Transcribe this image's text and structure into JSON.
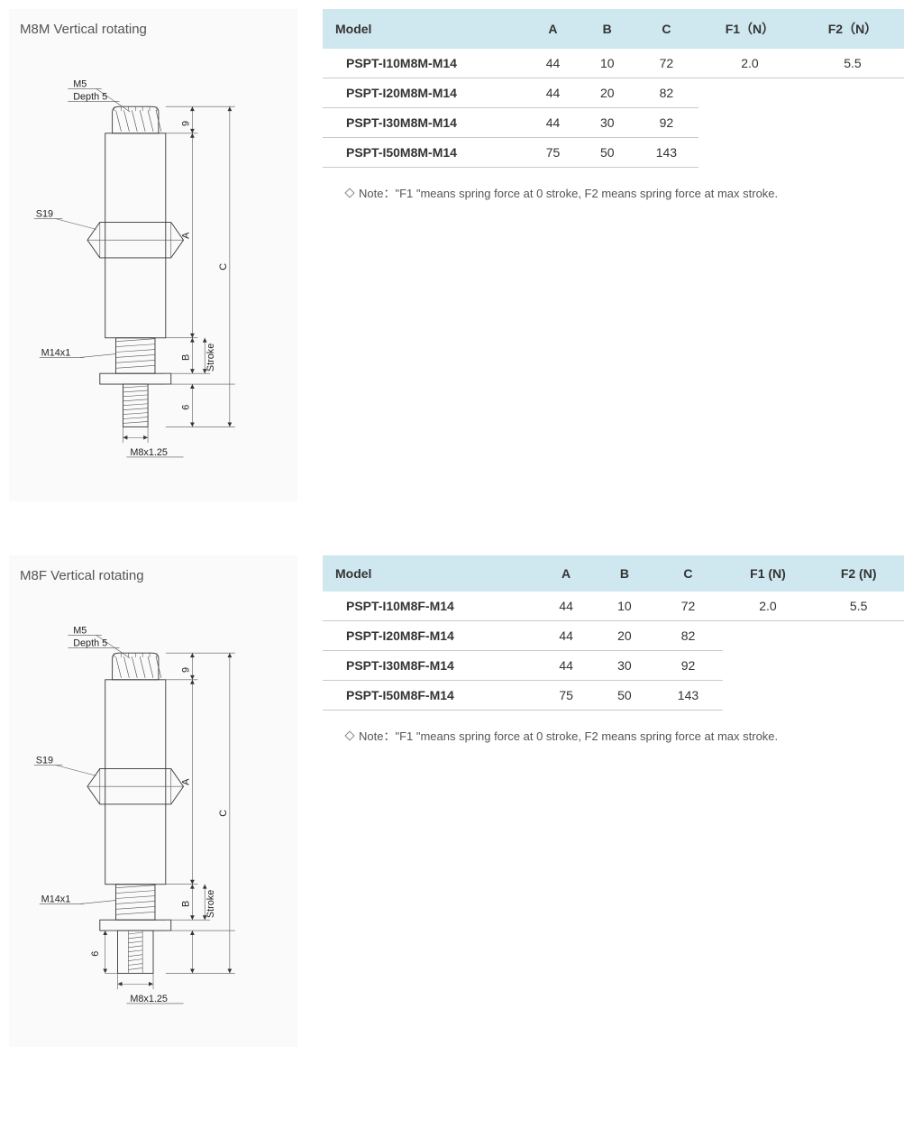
{
  "sections": [
    {
      "title": "M8M Vertical rotating",
      "diagram": {
        "top_thread_label": "M5",
        "top_depth_label": "Depth 5",
        "hex_label": "S19",
        "mid_thread_label": "M14x1",
        "bottom_thread_label": "M8x1.25",
        "dim_top_small": "9",
        "dim_bottom_small": "6",
        "dim_A": "A",
        "dim_B": "B",
        "dim_C": "C",
        "dim_stroke": "Stroke",
        "variant": "M"
      },
      "table": {
        "headers": [
          "Model",
          "A",
          "B",
          "C",
          "F1（N）",
          "F2（N）"
        ],
        "rows": [
          {
            "model": "PSPT-I10M8M-M14",
            "A": "44",
            "B": "10",
            "C": "72",
            "F1": "2.0",
            "F2": "5.5"
          },
          {
            "model": "PSPT-I20M8M-M14",
            "A": "44",
            "B": "20",
            "C": "82",
            "F1": "",
            "F2": ""
          },
          {
            "model": "PSPT-I30M8M-M14",
            "A": "44",
            "B": "30",
            "C": "92",
            "F1": "",
            "F2": ""
          },
          {
            "model": "PSPT-I50M8M-M14",
            "A": "75",
            "B": "50",
            "C": "143",
            "F1": "",
            "F2": ""
          }
        ]
      },
      "note": "Note：\"F1 \"means  spring force at 0 stroke, F2 means spring force at max stroke."
    },
    {
      "title": "M8F Vertical rotating",
      "diagram": {
        "top_thread_label": "M5",
        "top_depth_label": "Depth 5",
        "hex_label": "S19",
        "mid_thread_label": "M14x1",
        "bottom_thread_label": "M8x1.25",
        "dim_top_small": "9",
        "dim_bottom_small": "6",
        "dim_A": "A",
        "dim_B": "B",
        "dim_C": "C",
        "dim_stroke": "Stroke",
        "variant": "F"
      },
      "table": {
        "headers": [
          "Model",
          "A",
          "B",
          "C",
          "F1 (N)",
          "F2 (N)"
        ],
        "rows": [
          {
            "model": "PSPT-I10M8F-M14",
            "A": "44",
            "B": "10",
            "C": "72",
            "F1": "2.0",
            "F2": "5.5"
          },
          {
            "model": "PSPT-I20M8F-M14",
            "A": "44",
            "B": "20",
            "C": "82",
            "F1": "",
            "F2": ""
          },
          {
            "model": "PSPT-I30M8F-M14",
            "A": "44",
            "B": "30",
            "C": "92",
            "F1": "",
            "F2": ""
          },
          {
            "model": "PSPT-I50M8F-M14",
            "A": "75",
            "B": "50",
            "C": "143",
            "F1": "",
            "F2": ""
          }
        ]
      },
      "note": "Note：\"F1 \"means  spring force at 0 stroke, F2 means spring force at max stroke."
    }
  ],
  "colors": {
    "header_bg": "#cfe7ef",
    "panel_bg": "#fafafa",
    "border": "#c9c9c9",
    "line": "#333333"
  }
}
